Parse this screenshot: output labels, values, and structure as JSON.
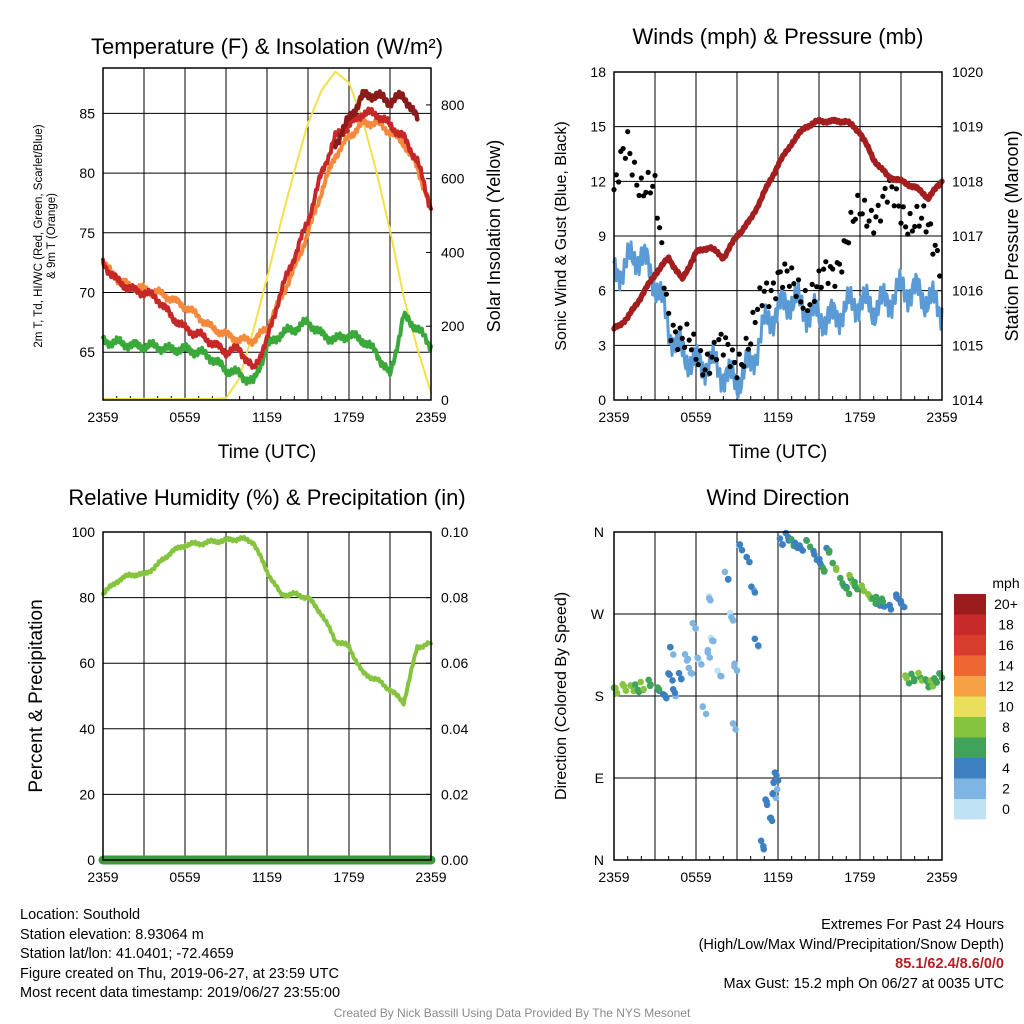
{
  "panels": {
    "temperature": {
      "title": "Temperature (F) & Insolation (W/m²)",
      "xlabel": "Time (UTC)",
      "ylabel_left_line1": "2m T, Td, HI/WC (Red, Green, Scarlet/Blue)",
      "ylabel_left_line2": "& 9m T (Orange)",
      "ylabel_right": "Solar Insolation (Yellow)"
    },
    "winds": {
      "title": "Winds (mph) & Pressure (mb)",
      "xlabel": "Time (UTC)",
      "ylabel_left": "Sonic Wind & Gust (Blue, Black)",
      "ylabel_right": "Station Pressure (Maroon)"
    },
    "humidity": {
      "title": "Relative Humidity (%) & Precipitation (in)",
      "ylabel_left": "Percent & Precipitation"
    },
    "direction": {
      "title": "Wind Direction",
      "ylabel_left": "Direction (Colored By Speed)",
      "colorbar_unit": "mph",
      "colorbar_labels": [
        "20+",
        "18",
        "16",
        "14",
        "12",
        "10",
        "8",
        "6",
        "4",
        "2",
        "0"
      ]
    }
  },
  "info_left": [
    "Location: Southold",
    "Station elevation: 8.93064 m",
    "Station lat/lon: 41.0401; -72.4659",
    "Figure created on Thu, 2019-06-27, at 23:59 UTC",
    "Most recent data timestamp: 2019/06/27 23:55:00"
  ],
  "extremes_title": "Extremes For Past 24 Hours",
  "extremes_subtitle": "(High/Low/Max Wind/Precipitation/Snow Depth)",
  "extremes_values": "85.1/62.4/8.6/0/0",
  "max_gust": "Max Gust: 15.2 mph On 06/27 at 0035 UTC",
  "credit": "Created By Nick Bassill Using Data Provided By The NYS Mesonet",
  "colors": {
    "temp_2m": "#c62828",
    "temp_9m": "#f5893b",
    "dewpoint": "#3aa83a",
    "heat_index": "#8b1a1a",
    "insolation": "#f3e04a",
    "wind": "#5b9bd5",
    "gust": "#000000",
    "pressure": "#a31f1f",
    "rh": "#86c440",
    "precip": "#3f9a3f",
    "colorbar": [
      "#9b1c1c",
      "#c72a2a",
      "#d83c2c",
      "#ee6631",
      "#f7a147",
      "#eadf5a",
      "#86c440",
      "#3fa35a",
      "#3d80c2",
      "#7fb5e2",
      "#bfe3f5"
    ]
  },
  "chart_data": [
    {
      "type": "line",
      "title": "Temperature (F) & Insolation (W/m²)",
      "xlabel": "Time (UTC)",
      "x_ticks": [
        "2359",
        "0559",
        "1159",
        "1759",
        "2359"
      ],
      "x_hours": [
        0,
        1,
        2,
        3,
        4,
        5,
        6,
        7,
        8,
        9,
        10,
        11,
        12,
        13,
        14,
        15,
        16,
        17,
        18,
        19,
        20,
        21,
        22,
        23,
        24
      ],
      "ylim_left": [
        61,
        88.8
      ],
      "yticks_left": [
        65,
        70,
        75,
        80,
        85
      ],
      "ylim_right": [
        0,
        900
      ],
      "yticks_right": [
        0,
        200,
        400,
        600,
        800
      ],
      "series": [
        {
          "name": "2m T",
          "axis": "left",
          "color": "#c62828",
          "values": [
            72.5,
            71,
            70.3,
            70,
            69.5,
            68,
            67,
            66.5,
            65.8,
            65,
            65.3,
            63.5,
            66,
            70,
            73,
            76,
            80,
            83,
            84,
            85,
            85,
            84,
            83,
            81,
            77
          ]
        },
        {
          "name": "9m T",
          "axis": "left",
          "color": "#f5893b",
          "values": [
            72.4,
            71.2,
            70.5,
            70.3,
            70,
            69.5,
            68.8,
            68,
            67,
            66.5,
            66,
            66,
            67,
            69.5,
            72,
            75,
            78.5,
            81.5,
            83,
            84.2,
            84.2,
            83.5,
            82.5,
            80.5,
            77
          ]
        },
        {
          "name": "Td",
          "axis": "left",
          "color": "#3aa83a",
          "values": [
            66,
            65.8,
            65.6,
            65.5,
            65.5,
            65.2,
            65.3,
            65,
            64.5,
            63.5,
            63.2,
            62.4,
            65.5,
            66.5,
            67,
            67.5,
            66.5,
            66,
            66.5,
            66,
            65,
            63,
            68,
            67,
            65.5
          ]
        },
        {
          "name": "HI/WC",
          "axis": "left",
          "color": "#8b1a1a",
          "values": [
            null,
            null,
            null,
            null,
            null,
            null,
            null,
            null,
            null,
            null,
            null,
            null,
            null,
            null,
            null,
            null,
            null,
            82.5,
            84.5,
            86.5,
            86.5,
            86,
            86.5,
            84.5,
            null
          ]
        },
        {
          "name": "Solar Insolation",
          "axis": "right",
          "color": "#f3e04a",
          "values": [
            3,
            3,
            3,
            3,
            3,
            3,
            3,
            3,
            3,
            5,
            60,
            190,
            330,
            480,
            620,
            750,
            840,
            890,
            860,
            760,
            620,
            460,
            280,
            140,
            20
          ]
        }
      ]
    },
    {
      "type": "line",
      "title": "Winds (mph) & Pressure (mb)",
      "xlabel": "Time (UTC)",
      "x_ticks": [
        "2359",
        "0559",
        "1159",
        "1759",
        "2359"
      ],
      "x_hours": [
        0,
        1,
        2,
        3,
        4,
        5,
        6,
        7,
        8,
        9,
        10,
        11,
        12,
        13,
        14,
        15,
        16,
        17,
        18,
        19,
        20,
        21,
        22,
        23,
        24
      ],
      "ylim_left": [
        0,
        18
      ],
      "yticks_left": [
        0,
        3,
        6,
        9,
        12,
        15,
        18
      ],
      "ylim_right": [
        1014,
        1020
      ],
      "yticks_right": [
        1014,
        1015,
        1016,
        1017,
        1018,
        1019,
        1020
      ],
      "series": [
        {
          "name": "Sonic Wind",
          "axis": "left",
          "color": "#5b9bd5",
          "values": [
            7,
            7.5,
            8,
            6.5,
            4,
            2.5,
            2,
            2,
            1.5,
            1,
            2,
            4,
            5,
            5.5,
            5,
            4.5,
            4.5,
            5,
            5.5,
            5,
            5.5,
            6,
            6,
            5.5,
            5
          ]
        },
        {
          "name": "Gust",
          "axis": "left",
          "color": "#000000",
          "values": [
            11,
            14,
            12,
            11,
            5,
            3,
            2.5,
            2.5,
            2.5,
            2.5,
            3,
            6,
            7,
            6,
            6,
            6,
            7,
            9,
            10,
            10.5,
            11,
            10.5,
            10,
            9,
            8
          ]
        },
        {
          "name": "Station Pressure",
          "axis": "right",
          "color": "#a31f1f",
          "values": [
            1015.3,
            1015.5,
            1015.9,
            1016.3,
            1016.6,
            1016.2,
            1016.7,
            1016.8,
            1016.6,
            1017.0,
            1017.3,
            1017.8,
            1018.3,
            1018.7,
            1019.0,
            1019.1,
            1019.1,
            1019.1,
            1018.9,
            1018.4,
            1018.1,
            1018.0,
            1017.9,
            1017.7,
            1018.0
          ]
        }
      ]
    },
    {
      "type": "line",
      "title": "Relative Humidity (%) & Precipitation (in)",
      "x_ticks": [
        "2359",
        "0559",
        "1159",
        "1759",
        "2359"
      ],
      "x_hours": [
        0,
        1,
        2,
        3,
        4,
        5,
        6,
        7,
        8,
        9,
        10,
        11,
        12,
        13,
        14,
        15,
        16,
        17,
        18,
        19,
        20,
        21,
        22,
        23,
        24
      ],
      "ylim_left": [
        0,
        100
      ],
      "yticks_left": [
        0,
        20,
        40,
        60,
        80,
        100
      ],
      "ylim_right": [
        0,
        0.1
      ],
      "yticks_right": [
        "0.00",
        "0.02",
        "0.04",
        "0.06",
        "0.08",
        "0.10"
      ],
      "series": [
        {
          "name": "Relative Humidity",
          "axis": "left",
          "color": "#86c440",
          "values": [
            81,
            85,
            87,
            87,
            90,
            94,
            96,
            96.5,
            97,
            97.5,
            98,
            97,
            88,
            81,
            81,
            80,
            75,
            67,
            65,
            57,
            55,
            52,
            48,
            65,
            66
          ]
        },
        {
          "name": "Precipitation",
          "axis": "right",
          "color": "#3f9a3f",
          "values": [
            0,
            0,
            0,
            0,
            0,
            0,
            0,
            0,
            0,
            0,
            0,
            0,
            0,
            0,
            0,
            0,
            0,
            0,
            0,
            0,
            0,
            0,
            0,
            0,
            0
          ]
        }
      ]
    },
    {
      "type": "scatter",
      "title": "Wind Direction",
      "x_ticks": [
        "2359",
        "0559",
        "1159",
        "1759",
        "2359"
      ],
      "yticks": [
        "N",
        "E",
        "S",
        "W",
        "N"
      ],
      "ylim_degrees": [
        0,
        360
      ],
      "points_hours": [
        0.2,
        0.7,
        1.2,
        1.7,
        2.2,
        2.7,
        3.2,
        3.6,
        4.1,
        4.3,
        4.5,
        4.8,
        5.2,
        5.6,
        6.0,
        6.3,
        6.5,
        6.8,
        7.0,
        7.3,
        7.8,
        8.2,
        8.5,
        8.8,
        9.0,
        9.3,
        9.7,
        10.1,
        10.5,
        11.0,
        11.2,
        11.4,
        11.6,
        11.8,
        12.0,
        12.3,
        12.6,
        13.0,
        13.4,
        13.8,
        14.2,
        14.6,
        15.0,
        15.4,
        15.8,
        16.2,
        16.6,
        17.0,
        17.4,
        17.8,
        18.2,
        18.6,
        19.0,
        19.4,
        19.8,
        20.2,
        20.6,
        21.0,
        21.5,
        22.0,
        22.4,
        22.8,
        23.2,
        23.6,
        24.0
      ],
      "direction_degrees": [
        183,
        188,
        192,
        191,
        189,
        190,
        186,
        183,
        205,
        230,
        180,
        200,
        225,
        210,
        255,
        215,
        165,
        230,
        290,
        240,
        200,
        310,
        270,
        150,
        210,
        340,
        330,
        300,
        240,
        14,
        60,
        45,
        75,
        85,
        90,
        345,
        355,
        352,
        347,
        340,
        345,
        335,
        330,
        320,
        337,
        318,
        305,
        300,
        310,
        298,
        295,
        290,
        287,
        285,
        280,
        275,
        290,
        285,
        200,
        197,
        198,
        196,
        198,
        198,
        200
      ],
      "speed_mph": [
        7,
        8,
        7,
        6,
        7,
        6,
        5,
        4,
        4,
        3,
        3,
        3,
        2,
        2,
        1,
        1,
        1,
        2,
        1,
        1,
        1,
        3,
        1,
        1,
        2,
        3,
        3,
        3,
        3,
        4,
        4,
        4,
        3,
        3,
        4,
        4,
        4,
        5,
        4,
        4,
        5,
        4,
        4,
        6,
        5,
        7,
        6,
        5,
        7,
        6,
        7,
        8,
        6,
        5,
        5,
        4,
        4,
        4,
        7,
        6,
        7,
        6,
        7,
        6,
        5
      ]
    }
  ]
}
